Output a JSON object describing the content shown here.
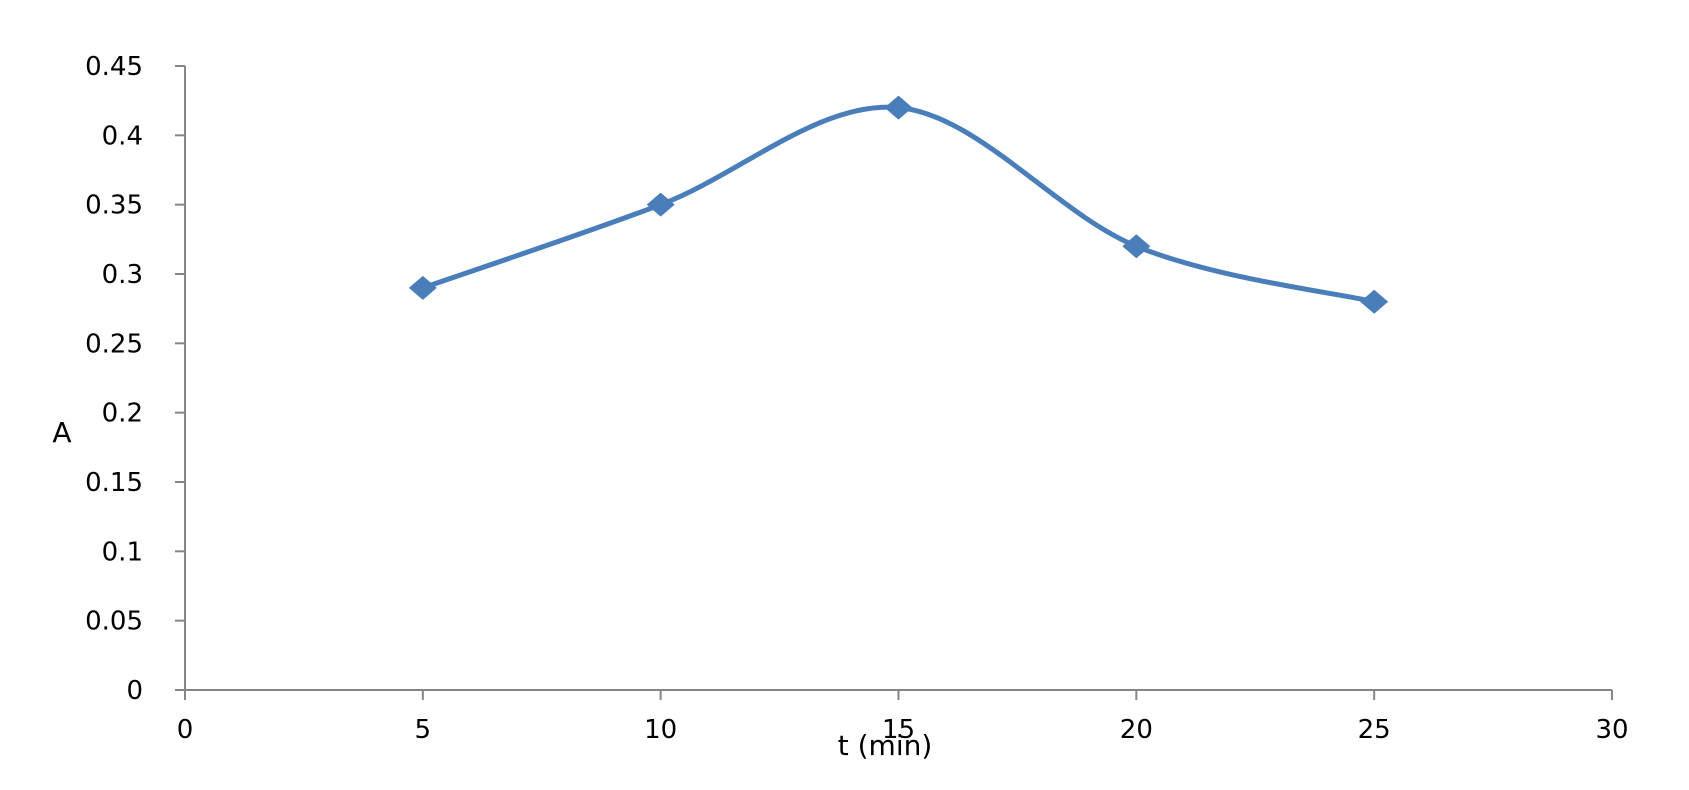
{
  "chart_data": {
    "type": "line",
    "smooth": true,
    "title": "",
    "xlabel": "t (min)",
    "ylabel": "A",
    "xlim": [
      0,
      30
    ],
    "ylim": [
      0,
      0.45
    ],
    "x_ticks": [
      "0",
      "5",
      "10",
      "15",
      "20",
      "25",
      "30"
    ],
    "y_ticks": [
      "0",
      "0.05",
      "0.1",
      "0.15",
      "0.2",
      "0.25",
      "0.3",
      "0.35",
      "0.4",
      "0.45"
    ],
    "grid": false,
    "legend": "none",
    "marker": "diamond",
    "color": "#4a7ebb",
    "series": [
      {
        "x": [
          5,
          10,
          15,
          20,
          25
        ],
        "y": [
          0.29,
          0.35,
          0.42,
          0.32,
          0.28
        ]
      }
    ]
  }
}
